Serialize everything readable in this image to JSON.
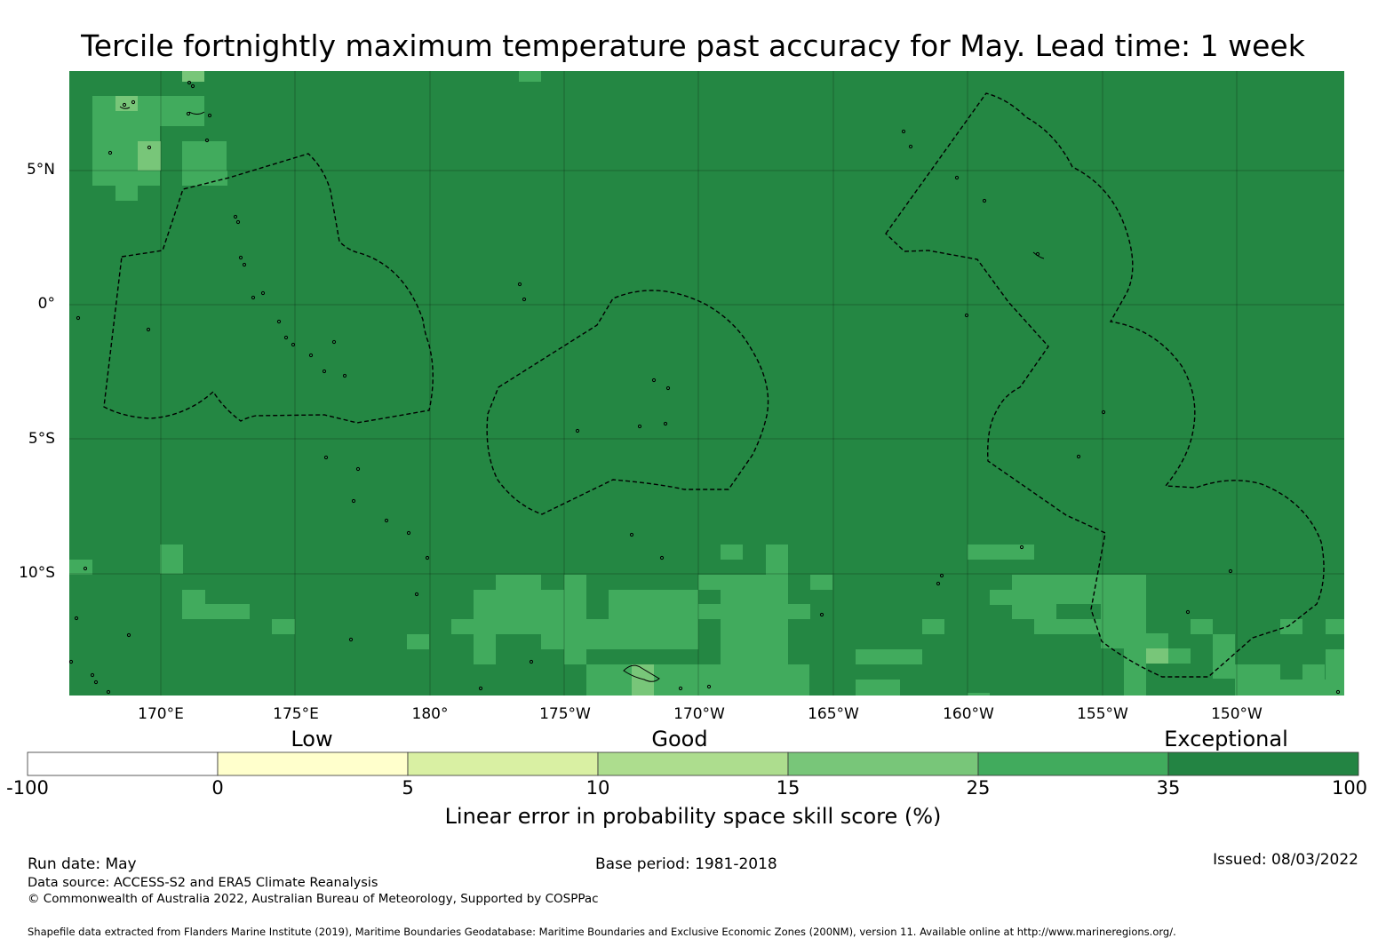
{
  "title": "Tercile fortnightly maximum temperature past accuracy for May. Lead time: 1 week",
  "map": {
    "lat_labels": [
      "5°N",
      "0°",
      "5°S",
      "10°S"
    ],
    "lon_labels": [
      "170°E",
      "175°E",
      "180°",
      "175°W",
      "170°W",
      "165°W",
      "160°W",
      "155°W",
      "150°W"
    ],
    "background_color": "#248743",
    "eez_line_style": "dashed"
  },
  "colorbar": {
    "categories": [
      "Low",
      "Good",
      "Exceptional"
    ],
    "ticks": [
      "-100",
      "0",
      "5",
      "10",
      "15",
      "25",
      "35",
      "100"
    ],
    "colors": [
      "#ffffff",
      "#ffffcc",
      "#d9f0a3",
      "#addd8e",
      "#78c679",
      "#41ab5d",
      "#238443"
    ],
    "title": "Linear error in probability space skill score (%)"
  },
  "footer": {
    "run_date": "Run date: May",
    "base_period": "Base period: 1981-2018",
    "issued": "Issued: 08/03/2022",
    "data_source": "Data source: ACCESS-S2 and ERA5 Climate Reanalysis",
    "copyright": "© Commonwealth of Australia 2022, Australian Bureau of Meteorology, Supported by COSPPac",
    "shapefile": "Shapefile data extracted from Flanders Marine Institute (2019), Maritime Boundaries Geodatabase: Maritime Boundaries and Exclusive Economic Zones (200NM), version 11. Available online at http://www.marineregions.org/."
  }
}
